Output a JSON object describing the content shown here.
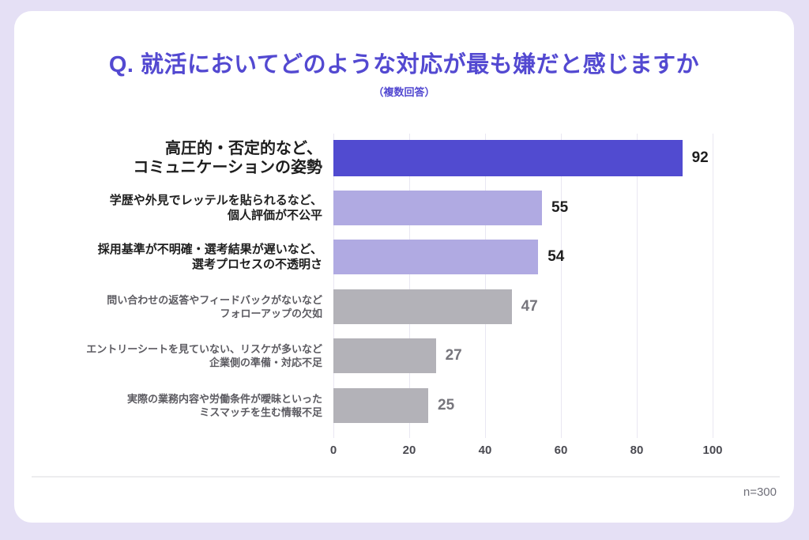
{
  "header": {
    "title": "Q. 就活においてどのような対応が最も嫌だと感じますか",
    "subtitle": "（複数回答）"
  },
  "chart_data": {
    "type": "bar",
    "orientation": "horizontal",
    "title": "Q. 就活においてどのような対応が最も嫌だと感じますか（複数回答）",
    "xlim": [
      0,
      100
    ],
    "x_ticks": [
      "0",
      "20",
      "40",
      "60",
      "80",
      "100"
    ],
    "grid": true,
    "categories": [
      "高圧的・否定的など、コミュニケーションの姿勢",
      "学歴や外見でレッテルを貼られるなど、個人評価が不公平",
      "採用基準が不明確・選考結果が遅いなど、選考プロセスの不透明さ",
      "問い合わせの返答やフィードバックがないなどフォローアップの欠如",
      "エントリーシートを見ていない、リスケが多いなど企業側の準備・対応不足",
      "実際の業務内容や労働条件が曖昧といったミスマッチを生む情報不足"
    ],
    "values": [
      92,
      55,
      54,
      47,
      27,
      25
    ],
    "items": [
      {
        "label_lines": [
          "高圧的・否定的など、",
          "コミュニケーションの姿勢"
        ],
        "value": 92,
        "bar_color": "#514BD0",
        "emphasis": "primary",
        "value_color": "dark"
      },
      {
        "label_lines": [
          "学歴や外見でレッテルを貼られるなど、",
          "個人評価が不公平"
        ],
        "value": 55,
        "bar_color": "#B0AAE2",
        "emphasis": "secondary",
        "value_color": "dark"
      },
      {
        "label_lines": [
          "採用基準が不明確・選考結果が遅いなど、",
          "選考プロセスの不透明さ"
        ],
        "value": 54,
        "bar_color": "#B0AAE2",
        "emphasis": "secondary",
        "value_color": "dark"
      },
      {
        "label_lines": [
          "問い合わせの返答やフィードバックがないなど",
          "フォローアップの欠如"
        ],
        "value": 47,
        "bar_color": "#B3B2B8",
        "emphasis": "muted",
        "value_color": "gray"
      },
      {
        "label_lines": [
          "エントリーシートを見ていない、リスケが多いなど",
          "企業側の準備・対応不足"
        ],
        "value": 27,
        "bar_color": "#B3B2B8",
        "emphasis": "muted",
        "value_color": "gray"
      },
      {
        "label_lines": [
          "実際の業務内容や労働条件が曖昧といった",
          "ミスマッチを生む情報不足"
        ],
        "value": 25,
        "bar_color": "#B3B2B8",
        "emphasis": "muted",
        "value_color": "gray"
      }
    ]
  },
  "footer": {
    "sample_size": "n=300"
  },
  "colors": {
    "page_background": "#E5E0F5",
    "card_background": "#FFFFFF",
    "accent": "#5349D1",
    "bar_primary": "#514BD0",
    "bar_secondary": "#B0AAE2",
    "bar_muted": "#B3B2B8",
    "gridline": "#E9E7F2"
  }
}
